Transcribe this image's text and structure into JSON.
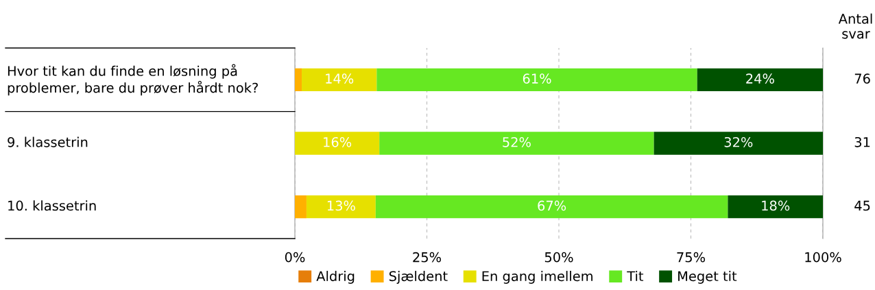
{
  "chart_data": {
    "type": "bar",
    "orientation": "horizontal",
    "stacked": true,
    "categories": [
      "Hvor tit kan du finde en løsning på\nproblemer, bare du prøver hårdt nok?",
      "9. klassetrin",
      "10. klassetrin"
    ],
    "series": [
      {
        "name": "Aldrig",
        "color": "#e67e0a",
        "values": [
          0,
          0,
          0
        ],
        "value_labels": [
          null,
          null,
          null
        ]
      },
      {
        "name": "Sjældent",
        "color": "#ffb000",
        "values": [
          1.3,
          0,
          2.2
        ],
        "value_labels": [
          null,
          null,
          null
        ]
      },
      {
        "name": "En gang imellem",
        "color": "#e6e000",
        "values": [
          14.2,
          16,
          13.1
        ],
        "value_labels": [
          "14%",
          "16%",
          "13%"
        ]
      },
      {
        "name": "Tit",
        "color": "#66e822",
        "values": [
          60.7,
          52,
          66.7
        ],
        "value_labels": [
          "61%",
          "52%",
          "67%"
        ]
      },
      {
        "name": "Meget tit",
        "color": "#005200",
        "values": [
          23.8,
          32,
          18
        ],
        "value_labels": [
          "24%",
          "32%",
          "18%"
        ]
      }
    ],
    "xlim": [
      0,
      100
    ],
    "xticks": [
      {
        "value": 0,
        "label": "0%"
      },
      {
        "value": 25,
        "label": "25%"
      },
      {
        "value": 50,
        "label": "50%"
      },
      {
        "value": 75,
        "label": "75%"
      },
      {
        "value": 100,
        "label": "100%"
      }
    ],
    "grid": "x",
    "legend": "bottom",
    "annotations": [
      "Antal\nsvar",
      "76",
      "31",
      "45"
    ]
  }
}
